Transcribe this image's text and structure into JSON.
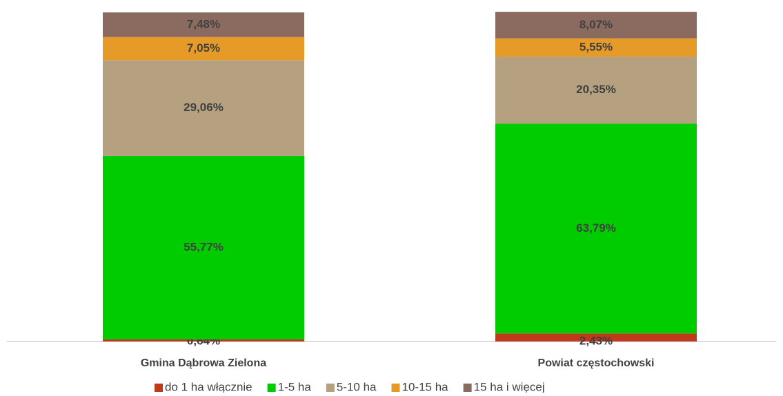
{
  "chart_data": {
    "type": "stacked-bar",
    "categories": [
      "Gmina Dąbrowa Zielona",
      "Powiat częstochowski"
    ],
    "ylim": [
      0,
      100
    ],
    "series": [
      {
        "name": "do 1 ha włącznie",
        "color": "#c0391b",
        "values": [
          0.64,
          2.43
        ],
        "value_labels": [
          "0,64%",
          "2,43%"
        ]
      },
      {
        "name": "1-5 ha",
        "color": "#00cc00",
        "values": [
          55.77,
          63.79
        ],
        "value_labels": [
          "55,77%",
          "63,79%"
        ]
      },
      {
        "name": "5-10 ha",
        "color": "#b5a07f",
        "values": [
          29.06,
          20.35
        ],
        "value_labels": [
          "29,06%",
          "20,35%"
        ]
      },
      {
        "name": "10-15 ha",
        "color": "#e69a28",
        "values": [
          7.05,
          5.55
        ],
        "value_labels": [
          "7,05%",
          "5,55%"
        ]
      },
      {
        "name": "15 ha i więcej",
        "color": "#8b6b5f",
        "values": [
          7.48,
          8.07
        ],
        "value_labels": [
          "7,48%",
          "8,07%"
        ]
      }
    ]
  }
}
